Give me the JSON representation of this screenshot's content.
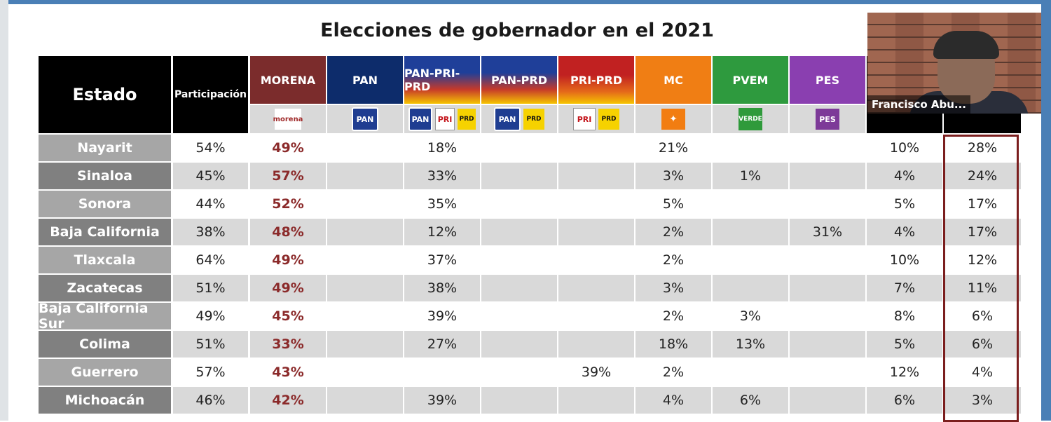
{
  "title": "Elecciones de gobernador en el 2021",
  "headers": {
    "estado": "Estado",
    "participacion": "Participación",
    "parties": [
      {
        "label": "MORENA",
        "bg": "#7b2c2c"
      },
      {
        "label": "PAN",
        "bg": "#0d2c6b"
      },
      {
        "label": "PAN-PRI-PRD",
        "bg": "#1f3f99"
      },
      {
        "label": "PAN-PRD",
        "bg": "#1f3f99"
      },
      {
        "label": "PRI-PRD",
        "bg": "#c12121"
      },
      {
        "label": "MC",
        "bg": "#f07e14"
      },
      {
        "label": "PVEM",
        "bg": "#2e9a3e"
      },
      {
        "label": "PES",
        "bg": "#8a3fb0"
      }
    ]
  },
  "logos": {
    "morena": "morena",
    "pan": "PAN",
    "pri": "PRI",
    "prd": "PRD",
    "mc": "✦",
    "verde": "VERDE",
    "pes": "PES"
  },
  "rows": [
    {
      "estado": "Nayarit",
      "participacion": "54%",
      "morena": "49%",
      "pan": "",
      "panpriprd": "18%",
      "panprd": "",
      "priprd": "",
      "mc": "21%",
      "pvem": "",
      "pes": "",
      "col11": "10%",
      "col12": "28%"
    },
    {
      "estado": "Sinaloa",
      "participacion": "45%",
      "morena": "57%",
      "pan": "",
      "panpriprd": "33%",
      "panprd": "",
      "priprd": "",
      "mc": "3%",
      "pvem": "1%",
      "pes": "",
      "col11": "4%",
      "col12": "24%"
    },
    {
      "estado": "Sonora",
      "participacion": "44%",
      "morena": "52%",
      "pan": "",
      "panpriprd": "35%",
      "panprd": "",
      "priprd": "",
      "mc": "5%",
      "pvem": "",
      "pes": "",
      "col11": "5%",
      "col12": "17%"
    },
    {
      "estado": "Baja California",
      "participacion": "38%",
      "morena": "48%",
      "pan": "",
      "panpriprd": "12%",
      "panprd": "",
      "priprd": "",
      "mc": "2%",
      "pvem": "",
      "pes": "31%",
      "col11": "4%",
      "col12": "17%"
    },
    {
      "estado": "Tlaxcala",
      "participacion": "64%",
      "morena": "49%",
      "pan": "",
      "panpriprd": "37%",
      "panprd": "",
      "priprd": "",
      "mc": "2%",
      "pvem": "",
      "pes": "",
      "col11": "10%",
      "col12": "12%"
    },
    {
      "estado": "Zacatecas",
      "participacion": "51%",
      "morena": "49%",
      "pan": "",
      "panpriprd": "38%",
      "panprd": "",
      "priprd": "",
      "mc": "3%",
      "pvem": "",
      "pes": "",
      "col11": "7%",
      "col12": "11%"
    },
    {
      "estado": "Baja California Sur",
      "participacion": "49%",
      "morena": "45%",
      "pan": "",
      "panpriprd": "39%",
      "panprd": "",
      "priprd": "",
      "mc": "2%",
      "pvem": "3%",
      "pes": "",
      "col11": "8%",
      "col12": "6%"
    },
    {
      "estado": "Colima",
      "participacion": "51%",
      "morena": "33%",
      "pan": "",
      "panpriprd": "27%",
      "panprd": "",
      "priprd": "",
      "mc": "18%",
      "pvem": "13%",
      "pes": "",
      "col11": "5%",
      "col12": "6%"
    },
    {
      "estado": "Guerrero",
      "participacion": "57%",
      "morena": "43%",
      "pan": "",
      "panpriprd": "",
      "panprd": "",
      "priprd": "39%",
      "mc": "2%",
      "pvem": "",
      "pes": "",
      "col11": "12%",
      "col12": "4%"
    },
    {
      "estado": "Michoacán",
      "participacion": "46%",
      "morena": "42%",
      "pan": "",
      "panpriprd": "39%",
      "panprd": "",
      "priprd": "",
      "mc": "4%",
      "pvem": "6%",
      "pes": "",
      "col11": "6%",
      "col12": "3%"
    }
  ],
  "video": {
    "name": "Francisco Abu..."
  },
  "colors": {
    "estado_light": "#a6a6a6",
    "estado_dark": "#808080",
    "row_light": "#ffffff",
    "row_dark": "#d9d9d9",
    "accent": "#7b1e1e"
  }
}
